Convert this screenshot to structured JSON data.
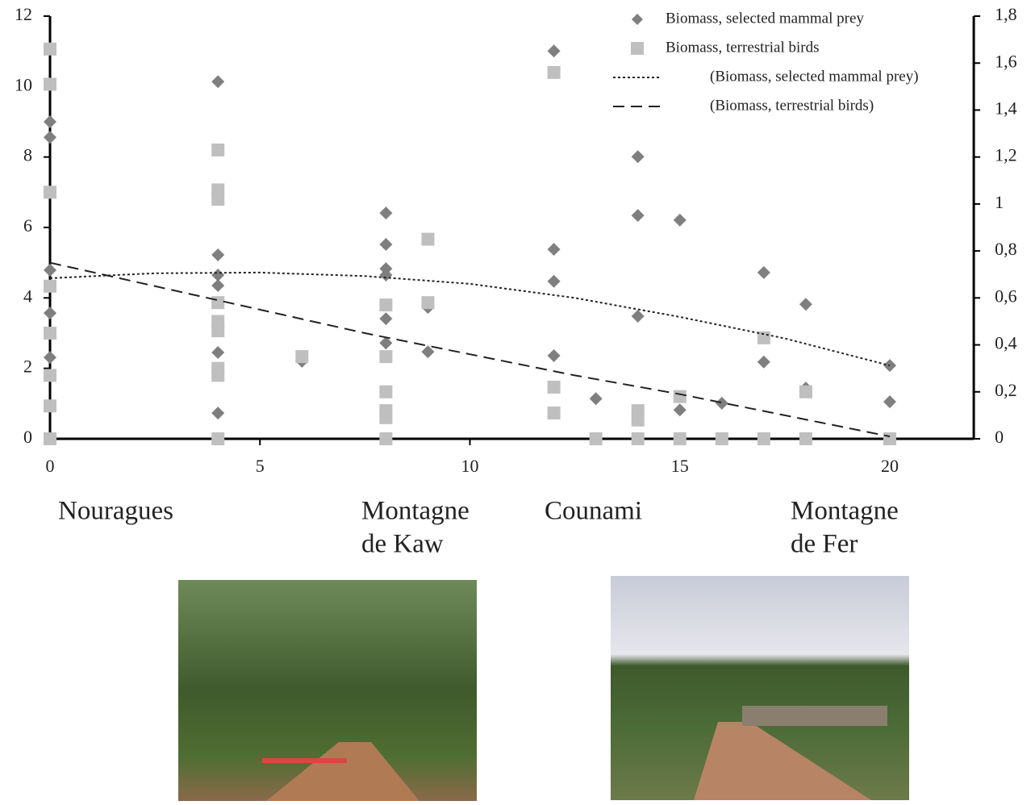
{
  "chart_data": {
    "type": "scatter",
    "xlim": [
      0,
      22
    ],
    "xticks": [
      0,
      5,
      10,
      15,
      20
    ],
    "ylim": [
      0,
      12
    ],
    "yticks": [
      0,
      2,
      4,
      6,
      8,
      10,
      12
    ],
    "y2lim": [
      0,
      1.8
    ],
    "y2ticks": [
      0,
      {
        "value": 0.2,
        "label": "0,2"
      },
      {
        "value": 0.4,
        "label": "0,4"
      },
      {
        "value": 0.6,
        "label": "0,6"
      },
      {
        "value": 0.8,
        "label": "0,8"
      },
      1,
      {
        "value": 1.2,
        "label": "1,2"
      },
      {
        "value": 1.4,
        "label": "1,4"
      },
      {
        "value": 1.6,
        "label": "1,6"
      },
      {
        "value": 1.8,
        "label": "1,8"
      }
    ],
    "series": [
      {
        "name": "Biomass, selected mammal prey",
        "type": "scatter",
        "marker": "diamond",
        "color": "#7f7f7f",
        "x": [
          0,
          0,
          0,
          0,
          0,
          4,
          4,
          4,
          4,
          4,
          4,
          6,
          8,
          8,
          8,
          8,
          8,
          8,
          9,
          9,
          12,
          12,
          12,
          12,
          13,
          14,
          14,
          14,
          15,
          15,
          16,
          17,
          17,
          18,
          18,
          20,
          20
        ],
        "values": [
          9.0,
          8.56,
          4.79,
          3.57,
          2.31,
          10.14,
          5.22,
          4.65,
          4.35,
          2.45,
          0.73,
          2.2,
          6.41,
          5.52,
          4.83,
          4.65,
          3.41,
          2.72,
          3.73,
          2.47,
          11.01,
          5.38,
          4.47,
          2.36,
          1.14,
          8.01,
          6.34,
          3.48,
          6.21,
          0.82,
          1.01,
          4.72,
          2.18,
          3.82,
          1.44,
          2.08,
          1.05
        ]
      },
      {
        "name": "Biomass, terrestrial birds",
        "type": "scatter",
        "marker": "square",
        "color": "#bfbfbf",
        "axis": "y2",
        "x": [
          0,
          0,
          0,
          0,
          0,
          0,
          0,
          0,
          4,
          4,
          4,
          4,
          4,
          4,
          4,
          4,
          4,
          6,
          8,
          8,
          8,
          8,
          8,
          8,
          9,
          9,
          12,
          12,
          12,
          13,
          14,
          14,
          14,
          15,
          15,
          16,
          17,
          17,
          18,
          18,
          20
        ],
        "values": [
          1.66,
          1.51,
          1.05,
          0.65,
          0.45,
          0.27,
          0.14,
          0,
          1.23,
          1.06,
          1.02,
          0.58,
          0.5,
          0.46,
          0.3,
          0.27,
          0,
          0.35,
          0.57,
          0.35,
          0.2,
          0.12,
          0.09,
          0,
          0.85,
          0.58,
          1.56,
          0.22,
          0.11,
          0,
          0.12,
          0.08,
          0,
          0.18,
          0,
          0,
          0.43,
          0,
          0.2,
          0,
          0
        ]
      },
      {
        "name": "(Biomass, selected mammal prey)",
        "type": "line",
        "dash": "3,3",
        "color": "#222222",
        "x": [
          0,
          2.5,
          5,
          7.5,
          10,
          12.5,
          15,
          17.5,
          20
        ],
        "values": [
          4.56,
          4.7,
          4.72,
          4.62,
          4.4,
          4.0,
          3.46,
          2.85,
          2.08
        ]
      },
      {
        "name": "(Biomass, terrestrial birds)",
        "type": "line",
        "dash": "14,8",
        "color": "#222222",
        "axis": "y2",
        "x": [
          0,
          2.5,
          5,
          7.5,
          10,
          12.5,
          15,
          17.5,
          20
        ],
        "values": [
          0.75,
          0.65,
          0.55,
          0.45,
          0.36,
          0.27,
          0.19,
          0.1,
          0.01
        ]
      }
    ],
    "annotations": [
      {
        "lines": [
          "Nouragues"
        ]
      },
      {
        "lines": [
          "Montagne",
          "de Kaw"
        ]
      },
      {
        "lines": [
          "Counami"
        ]
      },
      {
        "lines": [
          "Montagne",
          "de Fer"
        ]
      }
    ]
  }
}
